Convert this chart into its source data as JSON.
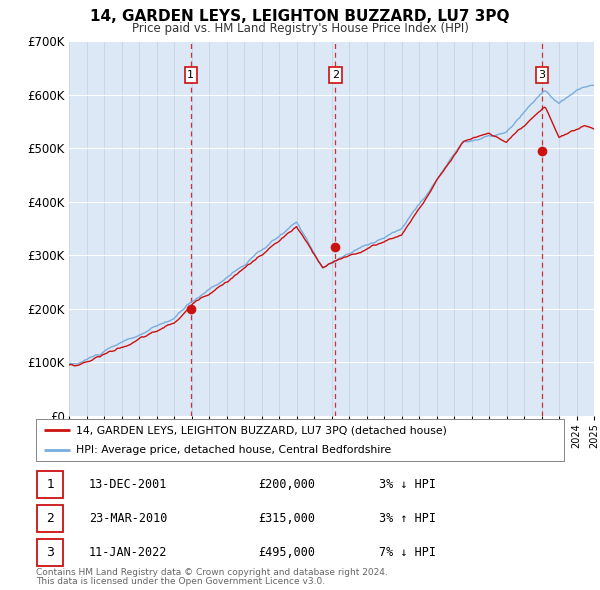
{
  "title": "14, GARDEN LEYS, LEIGHTON BUZZARD, LU7 3PQ",
  "subtitle": "Price paid vs. HM Land Registry's House Price Index (HPI)",
  "ylim": [
    0,
    700000
  ],
  "yticks": [
    0,
    100000,
    200000,
    300000,
    400000,
    500000,
    600000,
    700000
  ],
  "ytick_labels": [
    "£0",
    "£100K",
    "£200K",
    "£300K",
    "£400K",
    "£500K",
    "£600K",
    "£700K"
  ],
  "background_color": "#ffffff",
  "plot_bg_color": "#dce8f5",
  "grid_color": "#c0cfe0",
  "red_line_color": "#cc1111",
  "blue_line_color": "#7aacdc",
  "sale_marker_color": "#cc1111",
  "dashed_line_color": "#cc1111",
  "transactions": [
    {
      "label": "1",
      "date": "13-DEC-2001",
      "x": 2001.96,
      "price": 200000,
      "text": "3% ↓ HPI"
    },
    {
      "label": "2",
      "date": "23-MAR-2010",
      "x": 2010.22,
      "price": 315000,
      "text": "3% ↑ HPI"
    },
    {
      "label": "3",
      "date": "11-JAN-2022",
      "x": 2022.03,
      "price": 495000,
      "text": "7% ↓ HPI"
    }
  ],
  "legend_label_red": "14, GARDEN LEYS, LEIGHTON BUZZARD, LU7 3PQ (detached house)",
  "legend_label_blue": "HPI: Average price, detached house, Central Bedfordshire",
  "footer1": "Contains HM Land Registry data © Crown copyright and database right 2024.",
  "footer2": "This data is licensed under the Open Government Licence v3.0."
}
